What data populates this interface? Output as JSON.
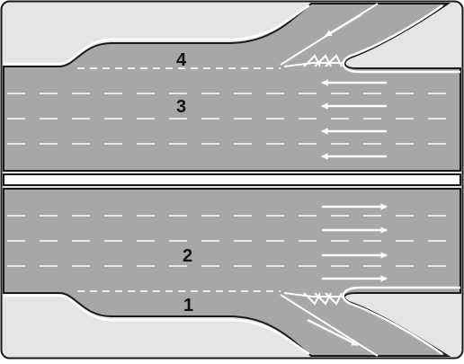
{
  "diagram": {
    "colors": {
      "asphalt": "#a7a7a7",
      "verge": "#e5e5e5",
      "marking": "#ffffff",
      "edge": "#1a1a1a"
    },
    "lane_numbers": {
      "n1": "1",
      "n2": "2",
      "n3": "3",
      "n4": "4"
    },
    "arrows": {
      "upper_carriageway": "left",
      "lower_carriageway": "right",
      "upper_ramp": "up-right",
      "lower_ramp": "down-right"
    }
  }
}
